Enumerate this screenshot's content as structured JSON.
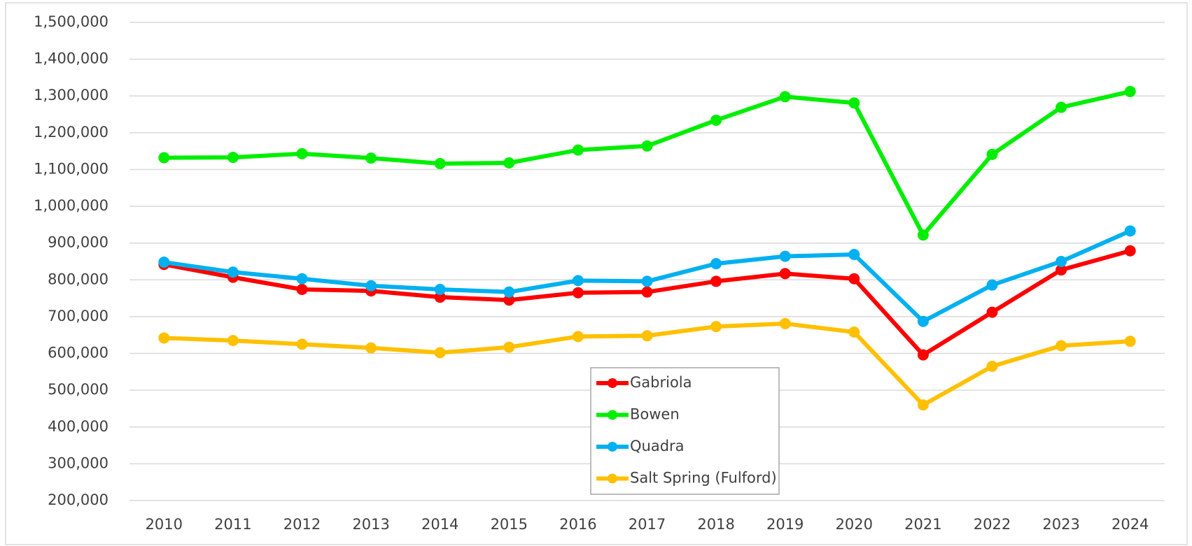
{
  "chart_data": {
    "type": "line",
    "categories": [
      "2010",
      "2011",
      "2012",
      "2013",
      "2014",
      "2015",
      "2016",
      "2017",
      "2018",
      "2019",
      "2020",
      "2021",
      "2022",
      "2023",
      "2024"
    ],
    "series": [
      {
        "name": "Gabriola",
        "color": "#ff0000",
        "values": [
          842000,
          807000,
          774000,
          770000,
          753000,
          745000,
          765000,
          767000,
          796000,
          817000,
          803000,
          596000,
          712000,
          827000,
          879000
        ]
      },
      {
        "name": "Bowen",
        "color": "#00ee00",
        "values": [
          1132000,
          1133000,
          1143000,
          1131000,
          1116000,
          1118000,
          1153000,
          1164000,
          1234000,
          1298000,
          1281000,
          922000,
          1141000,
          1269000,
          1312000
        ]
      },
      {
        "name": "Quadra",
        "color": "#00b0f0",
        "values": [
          848000,
          821000,
          803000,
          784000,
          774000,
          767000,
          798000,
          796000,
          844000,
          864000,
          869000,
          687000,
          786000,
          850000,
          933000
        ]
      },
      {
        "name": "Salt Spring (Fulford)",
        "color": "#ffc000",
        "values": [
          642000,
          635000,
          625000,
          615000,
          602000,
          617000,
          646000,
          648000,
          673000,
          681000,
          658000,
          460000,
          565000,
          621000,
          633000
        ]
      }
    ],
    "ylim": [
      200000,
      1500000
    ],
    "yticks": [
      {
        "value": 200000,
        "label": "200,000"
      },
      {
        "value": 300000,
        "label": "300,000"
      },
      {
        "value": 400000,
        "label": "400,000"
      },
      {
        "value": 500000,
        "label": "500,000"
      },
      {
        "value": 600000,
        "label": "600,000"
      },
      {
        "value": 700000,
        "label": "700,000"
      },
      {
        "value": 800000,
        "label": "800,000"
      },
      {
        "value": 900000,
        "label": "900,000"
      },
      {
        "value": 1000000,
        "label": "1,000,000"
      },
      {
        "value": 1100000,
        "label": "1,100,000"
      },
      {
        "value": 1200000,
        "label": "1,200,000"
      },
      {
        "value": 1300000,
        "label": "1,300,000"
      },
      {
        "value": 1400000,
        "label": "1,400,000"
      },
      {
        "value": 1500000,
        "label": "1,500,000"
      }
    ],
    "grid": true,
    "legend": "bottom-center"
  }
}
